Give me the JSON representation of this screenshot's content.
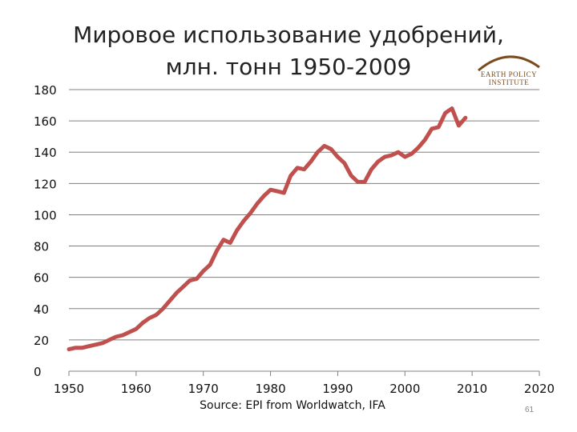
{
  "title_line1": "Мировое использование удобрений,",
  "title_line2": "млн. тонн 1950-2009",
  "logo_text": "EARTH POLICY INSTITUTE",
  "source": "Source: EPI from Worldwatch, IFA",
  "page_number": "61",
  "colors": {
    "line": "#c0504d",
    "grid": "#808080",
    "logo": "#7a4b1e"
  },
  "chart_data": {
    "type": "line",
    "title": "Мировое использование удобрений, млн. тонн 1950-2009",
    "xlabel": "",
    "ylabel": "",
    "xlim": [
      1950,
      2020
    ],
    "ylim": [
      0,
      180
    ],
    "xticks": [
      "1950",
      "1960",
      "1970",
      "1980",
      "1990",
      "2000",
      "2010",
      "2020"
    ],
    "yticks": [
      "0",
      "20",
      "40",
      "60",
      "80",
      "100",
      "120",
      "140",
      "160",
      "180"
    ],
    "grid": "horizontal",
    "legend": "none",
    "series": [
      {
        "x": [
          1950,
          1951,
          1952,
          1953,
          1954,
          1955,
          1956,
          1957,
          1958,
          1959,
          1960,
          1961,
          1962,
          1963,
          1964,
          1965,
          1966,
          1967,
          1968,
          1969,
          1970,
          1971,
          1972,
          1973,
          1974,
          1975,
          1976,
          1977,
          1978,
          1979,
          1980,
          1981,
          1982,
          1983,
          1984,
          1985,
          1986,
          1987,
          1988,
          1989,
          1990,
          1991,
          1992,
          1993,
          1994,
          1995,
          1996,
          1997,
          1998,
          1999,
          2000,
          2001,
          2002,
          2003,
          2004,
          2005,
          2006,
          2007,
          2008,
          2009
        ],
        "values": [
          14,
          15,
          15,
          16,
          17,
          18,
          20,
          22,
          23,
          25,
          27,
          31,
          34,
          36,
          40,
          45,
          50,
          54,
          58,
          59,
          64,
          68,
          77,
          84,
          82,
          90,
          96,
          101,
          107,
          112,
          116,
          115,
          114,
          125,
          130,
          129,
          134,
          140,
          144,
          142,
          137,
          133,
          125,
          121,
          121,
          129,
          134,
          137,
          138,
          140,
          137,
          139,
          143,
          148,
          155,
          156,
          165,
          168,
          157,
          162
        ]
      }
    ]
  }
}
